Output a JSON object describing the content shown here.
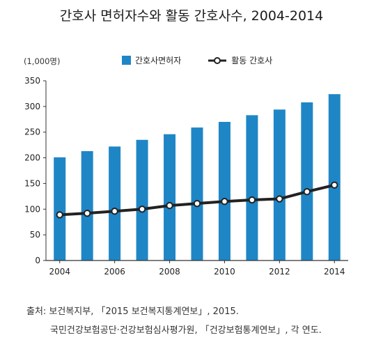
{
  "title": "간호사 면허자수와 활동 간호사수, 2004-2014",
  "unit_label": "(1,000명)",
  "source_line1": "출처: 보건복지부, 「2015 보건복지통계연보」, 2015.",
  "source_line2": "국민건강보험공단·건강보험심사평가원, 「건강보험통계연보」, 각 연도.",
  "chart_data": {
    "type": "bar",
    "title": "간호사 면허자수와 활동 간호사수, 2004-2014",
    "xlabel": "",
    "ylabel": "(1,000명)",
    "categories": [
      2004,
      2005,
      2006,
      2007,
      2008,
      2009,
      2010,
      2011,
      2012,
      2013,
      2014
    ],
    "x_tick_labels": [
      "2004",
      "2006",
      "2008",
      "2010",
      "2012",
      "2014"
    ],
    "y_ticks": [
      0,
      50,
      100,
      150,
      200,
      250,
      300,
      350
    ],
    "ylim": [
      0,
      350
    ],
    "grid": false,
    "legend_position": "top",
    "series": [
      {
        "name": "간호사면허자",
        "type": "bar",
        "color": "#1f86c6",
        "values": [
          201,
          213,
          222,
          235,
          246,
          259,
          270,
          283,
          294,
          308,
          324
        ]
      },
      {
        "name": "활동 간호사",
        "type": "line",
        "color": "#222222",
        "values": [
          89,
          92,
          96,
          100,
          107,
          111,
          115,
          118,
          120,
          134,
          147
        ]
      }
    ]
  }
}
